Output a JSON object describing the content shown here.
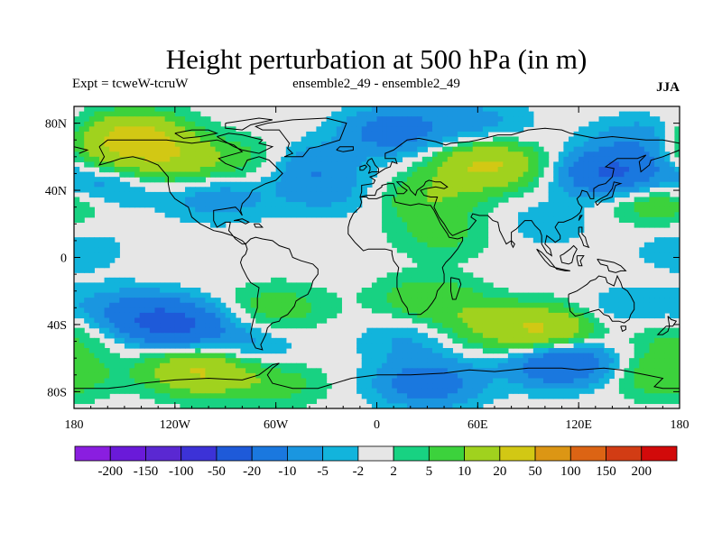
{
  "chart_data": {
    "type": "heatmap",
    "title": "Height perturbation at 500 hPa (in m)",
    "left_label": "Expt = tcweW-tcruW",
    "center_label": "ensemble2_49 - ensemble2_49",
    "right_label": "JJA",
    "x_ticks": [
      {
        "value": -180,
        "label": "180"
      },
      {
        "value": -120,
        "label": "120W"
      },
      {
        "value": -60,
        "label": "60W"
      },
      {
        "value": 0,
        "label": "0"
      },
      {
        "value": 60,
        "label": "60E"
      },
      {
        "value": 120,
        "label": "120E"
      },
      {
        "value": 180,
        "label": "180"
      }
    ],
    "y_ticks": [
      {
        "value": 80,
        "label": "80N"
      },
      {
        "value": 40,
        "label": "40N"
      },
      {
        "value": 0,
        "label": "0"
      },
      {
        "value": -40,
        "label": "40S"
      },
      {
        "value": -80,
        "label": "80S"
      }
    ],
    "xlim": [
      -180,
      180
    ],
    "ylim": [
      -90,
      90
    ],
    "colorbar": {
      "levels": [
        "-200",
        "-150",
        "-100",
        "-50",
        "-20",
        "-10",
        "-5",
        "-2",
        "2",
        "5",
        "10",
        "20",
        "50",
        "100",
        "150",
        "200"
      ],
      "colors": [
        "#8a1ee0",
        "#6a1ad9",
        "#5a28d2",
        "#3c32d7",
        "#1e5ad9",
        "#1a78df",
        "#1a96e0",
        "#12b4dc",
        "#e6e6e6",
        "#18d282",
        "#3cd23c",
        "#a0d21e",
        "#d2c814",
        "#dc9614",
        "#dc6414",
        "#d23c14",
        "#d20a0a"
      ]
    },
    "fields": [
      {
        "lon": -145,
        "lat": 72,
        "value": 22
      },
      {
        "lon": -120,
        "lat": 58,
        "value": 14
      },
      {
        "lon": -168,
        "lat": 62,
        "value": 8
      },
      {
        "lon": -170,
        "lat": 42,
        "value": -12
      },
      {
        "lon": -95,
        "lat": 36,
        "value": -8
      },
      {
        "lon": -68,
        "lat": 57,
        "value": 9
      },
      {
        "lon": -45,
        "lat": 55,
        "value": -12
      },
      {
        "lon": -28,
        "lat": 38,
        "value": -6
      },
      {
        "lon": 10,
        "lat": 75,
        "value": -14
      },
      {
        "lon": 60,
        "lat": 80,
        "value": -7
      },
      {
        "lon": 65,
        "lat": 55,
        "value": 22
      },
      {
        "lon": 30,
        "lat": 35,
        "value": 9
      },
      {
        "lon": 40,
        "lat": 13,
        "value": 6
      },
      {
        "lon": 100,
        "lat": 20,
        "value": -4
      },
      {
        "lon": 140,
        "lat": 50,
        "value": -22
      },
      {
        "lon": 170,
        "lat": 35,
        "value": 14
      },
      {
        "lon": 160,
        "lat": 70,
        "value": -9
      },
      {
        "lon": -178,
        "lat": 5,
        "value": -4
      },
      {
        "lon": -120,
        "lat": -40,
        "value": -22
      },
      {
        "lon": -150,
        "lat": -33,
        "value": -10
      },
      {
        "lon": -80,
        "lat": -55,
        "value": -8
      },
      {
        "lon": -105,
        "lat": -67,
        "value": 22
      },
      {
        "lon": -60,
        "lat": -30,
        "value": 8
      },
      {
        "lon": -60,
        "lat": -75,
        "value": 7
      },
      {
        "lon": 30,
        "lat": -25,
        "value": 9
      },
      {
        "lon": 20,
        "lat": -48,
        "value": -6
      },
      {
        "lon": 100,
        "lat": -44,
        "value": 22
      },
      {
        "lon": 60,
        "lat": -40,
        "value": 8
      },
      {
        "lon": 110,
        "lat": -62,
        "value": -22
      },
      {
        "lon": 30,
        "lat": -75,
        "value": -15
      },
      {
        "lon": 170,
        "lat": -70,
        "value": 10
      },
      {
        "lon": 150,
        "lat": -32,
        "value": -6
      },
      {
        "lon": 178,
        "lat": -45,
        "value": 7
      }
    ]
  }
}
